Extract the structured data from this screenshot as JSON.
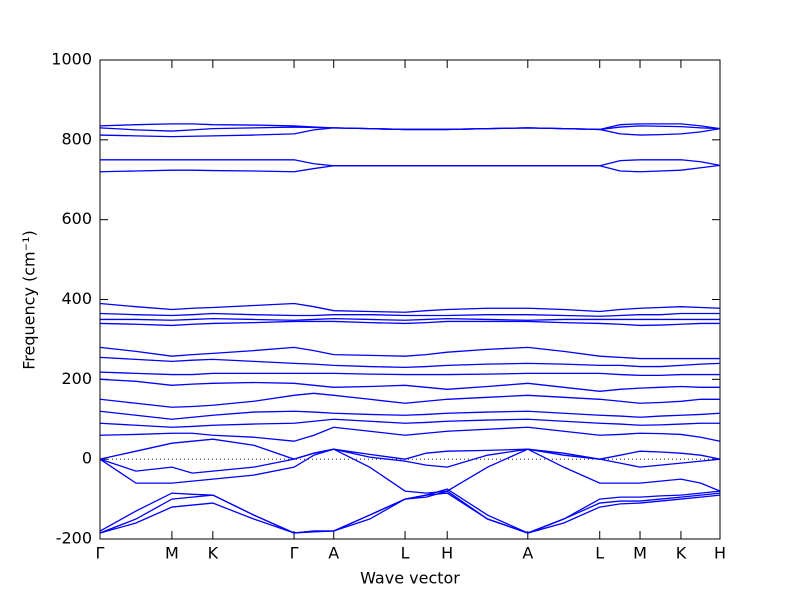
{
  "chart_data": {
    "type": "line",
    "xlabel": "Wave vector",
    "ylabel": "Frequency (cm⁻¹)",
    "color": "#0000ff",
    "x": [
      0,
      0.058,
      0.116,
      0.149,
      0.182,
      0.248,
      0.313,
      0.345,
      0.377,
      0.435,
      0.492,
      0.526,
      0.56,
      0.625,
      0.69,
      0.748,
      0.806,
      0.839,
      0.871,
      0.904,
      0.937,
      0.969,
      1.0
    ],
    "xlim": [
      0,
      1
    ],
    "xticks": [
      {
        "value": 0,
        "label": "Γ"
      },
      {
        "value": 0.116,
        "label": "M"
      },
      {
        "value": 0.182,
        "label": "K"
      },
      {
        "value": 0.313,
        "label": "Γ"
      },
      {
        "value": 0.377,
        "label": "A"
      },
      {
        "value": 0.492,
        "label": "L"
      },
      {
        "value": 0.56,
        "label": "H"
      },
      {
        "value": 0.69,
        "label": "A"
      },
      {
        "value": 0.806,
        "label": "L"
      },
      {
        "value": 0.871,
        "label": "M"
      },
      {
        "value": 0.937,
        "label": "K"
      },
      {
        "value": 1.0,
        "label": "H"
      }
    ],
    "ylim": [
      -200,
      1000
    ],
    "yticks": [
      -200,
      0,
      200,
      400,
      600,
      800,
      1000
    ],
    "series": [
      {
        "values": [
          835,
          838,
          840,
          840,
          838,
          837,
          835,
          832,
          830,
          828,
          826,
          826,
          826,
          828,
          830,
          828,
          826,
          838,
          840,
          840,
          840,
          835,
          828
        ]
      },
      {
        "values": [
          830,
          825,
          822,
          825,
          828,
          830,
          832,
          831,
          830,
          828,
          826,
          826,
          826,
          828,
          830,
          828,
          826,
          832,
          835,
          834,
          833,
          830,
          828
        ]
      },
      {
        "values": [
          812,
          810,
          808,
          809,
          810,
          812,
          815,
          825,
          830,
          828,
          826,
          826,
          826,
          828,
          830,
          828,
          826,
          815,
          812,
          813,
          815,
          820,
          828
        ]
      },
      {
        "values": [
          750,
          750,
          750,
          750,
          750,
          750,
          750,
          740,
          735,
          735,
          735,
          735,
          735,
          735,
          735,
          735,
          735,
          748,
          750,
          750,
          750,
          745,
          736
        ]
      },
      {
        "values": [
          720,
          722,
          724,
          724,
          723,
          722,
          720,
          728,
          735,
          735,
          735,
          735,
          735,
          735,
          735,
          735,
          735,
          722,
          720,
          722,
          724,
          730,
          736
        ]
      },
      {
        "values": [
          390,
          382,
          375,
          378,
          380,
          385,
          390,
          382,
          372,
          370,
          368,
          372,
          375,
          378,
          378,
          375,
          370,
          375,
          378,
          380,
          382,
          380,
          378
        ]
      },
      {
        "values": [
          365,
          362,
          360,
          362,
          365,
          362,
          360,
          360,
          362,
          362,
          360,
          360,
          360,
          362,
          362,
          360,
          358,
          360,
          362,
          362,
          365,
          365,
          365
        ]
      },
      {
        "values": [
          350,
          350,
          348,
          350,
          352,
          350,
          348,
          350,
          352,
          350,
          348,
          350,
          352,
          350,
          348,
          350,
          350,
          350,
          350,
          350,
          350,
          350,
          350
        ]
      },
      {
        "values": [
          340,
          338,
          335,
          338,
          340,
          342,
          345,
          345,
          345,
          342,
          340,
          342,
          345,
          345,
          345,
          342,
          340,
          338,
          335,
          336,
          338,
          340,
          340
        ]
      },
      {
        "values": [
          280,
          270,
          258,
          262,
          265,
          272,
          280,
          272,
          262,
          260,
          258,
          262,
          268,
          275,
          280,
          270,
          258,
          255,
          252,
          252,
          252,
          252,
          252
        ]
      },
      {
        "values": [
          255,
          250,
          245,
          248,
          250,
          245,
          240,
          238,
          235,
          232,
          230,
          232,
          235,
          238,
          240,
          238,
          235,
          235,
          232,
          232,
          235,
          238,
          240
        ]
      },
      {
        "values": [
          218,
          215,
          212,
          212,
          215,
          215,
          215,
          215,
          215,
          213,
          212,
          212,
          212,
          213,
          215,
          215,
          215,
          212,
          210,
          210,
          212,
          212,
          212
        ]
      },
      {
        "values": [
          200,
          195,
          185,
          188,
          190,
          192,
          190,
          185,
          180,
          182,
          185,
          180,
          175,
          182,
          190,
          180,
          170,
          175,
          178,
          180,
          182,
          180,
          180
        ]
      },
      {
        "values": [
          150,
          140,
          130,
          132,
          135,
          145,
          160,
          165,
          160,
          150,
          140,
          145,
          150,
          155,
          160,
          155,
          150,
          145,
          140,
          142,
          145,
          150,
          150
        ]
      },
      {
        "values": [
          120,
          110,
          100,
          105,
          110,
          118,
          120,
          118,
          115,
          112,
          110,
          112,
          115,
          118,
          120,
          115,
          110,
          108,
          105,
          108,
          110,
          112,
          115
        ]
      },
      {
        "values": [
          90,
          85,
          80,
          82,
          85,
          88,
          90,
          95,
          100,
          95,
          90,
          92,
          95,
          98,
          100,
          95,
          90,
          88,
          85,
          86,
          88,
          90,
          90
        ]
      },
      {
        "values": [
          60,
          62,
          65,
          65,
          60,
          55,
          45,
          60,
          80,
          70,
          60,
          65,
          70,
          75,
          80,
          70,
          60,
          62,
          65,
          64,
          62,
          55,
          45
        ]
      },
      {
        "values": [
          0,
          20,
          40,
          45,
          50,
          35,
          0,
          15,
          25,
          12,
          0,
          15,
          20,
          22,
          25,
          15,
          0,
          10,
          20,
          18,
          15,
          10,
          0
        ]
      },
      {
        "values": [
          0,
          -30,
          -20,
          -35,
          -30,
          -20,
          0,
          15,
          25,
          5,
          -5,
          -15,
          -20,
          10,
          25,
          10,
          0,
          -10,
          -20,
          -15,
          -10,
          -5,
          0
        ]
      },
      {
        "values": [
          0,
          -60,
          -60,
          -55,
          -50,
          -40,
          -20,
          10,
          25,
          -20,
          -80,
          -85,
          -80,
          -20,
          25,
          -20,
          -60,
          -60,
          -60,
          -55,
          -50,
          -60,
          -80
        ]
      },
      {
        "values": [
          -185,
          -150,
          -100,
          -95,
          -90,
          -140,
          -185,
          -180,
          -180,
          -140,
          -100,
          -95,
          -80,
          -150,
          -185,
          -150,
          -100,
          -95,
          -95,
          -92,
          -90,
          -85,
          -80
        ]
      },
      {
        "values": [
          -185,
          -160,
          -120,
          -115,
          -110,
          -150,
          -185,
          -180,
          -180,
          -140,
          -100,
          -90,
          -85,
          -150,
          -185,
          -150,
          -110,
          -105,
          -105,
          -100,
          -95,
          -90,
          -85
        ]
      },
      {
        "values": [
          -180,
          -130,
          -85,
          -88,
          -90,
          -140,
          -185,
          -182,
          -180,
          -150,
          -100,
          -90,
          -75,
          -140,
          -185,
          -160,
          -120,
          -112,
          -110,
          -105,
          -100,
          -95,
          -90
        ]
      }
    ]
  }
}
